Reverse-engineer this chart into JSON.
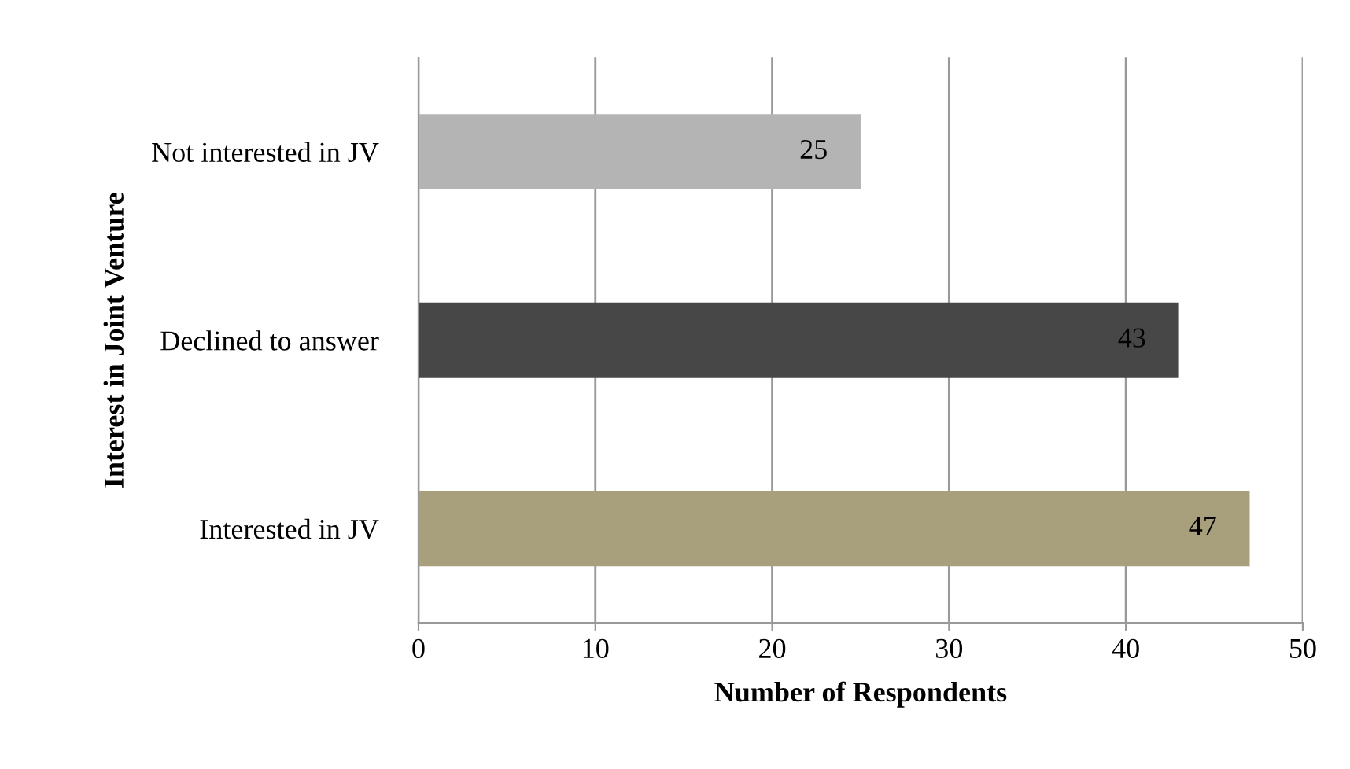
{
  "chart_data": {
    "type": "bar",
    "orientation": "horizontal",
    "xlabel": "Number of Respondents",
    "ylabel": "Interest in Joint Venture",
    "categories": [
      "Not interested in JV",
      "Declined to answer",
      "Interested in JV"
    ],
    "values": [
      25,
      43,
      47
    ],
    "colors": [
      "#b4b4b4",
      "#474747",
      "#a8a07c"
    ],
    "xlim": [
      0,
      50
    ],
    "xticks": [
      0,
      10,
      20,
      30,
      40,
      50
    ],
    "grid": "x",
    "data_labels": true
  }
}
